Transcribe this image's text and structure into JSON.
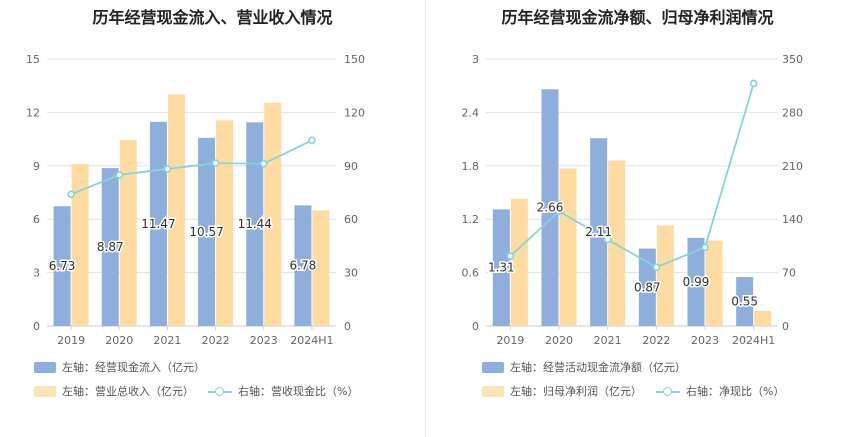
{
  "chart_data": [
    {
      "type": "bar",
      "title": "历年经营现金流入、营业收入情况",
      "categories": [
        "2019",
        "2020",
        "2021",
        "2022",
        "2023",
        "2024H1"
      ],
      "left_axis": {
        "ylim": [
          0,
          15
        ],
        "ticks": [
          "0",
          "3",
          "6",
          "9",
          "12",
          "15"
        ]
      },
      "right_axis": {
        "ylim": [
          0,
          150
        ],
        "ticks": [
          "0",
          "30",
          "60",
          "90",
          "120",
          "150"
        ]
      },
      "series": [
        {
          "name": "左轴：经营现金流入（亿元）",
          "axis": "left",
          "kind": "bar",
          "color": "#8eaedc",
          "values": [
            6.73,
            8.87,
            11.47,
            10.57,
            11.44,
            6.78
          ],
          "labels": [
            "6.73",
            "8.87",
            "11.47",
            "10.57",
            "11.44",
            "6.78"
          ]
        },
        {
          "name": "左轴：营业总收入（亿元）",
          "axis": "left",
          "kind": "bar",
          "color": "#fedba0",
          "values": [
            9.1,
            10.45,
            13.0,
            11.55,
            12.55,
            6.5
          ]
        },
        {
          "name": "右轴：营收现金比（%）",
          "axis": "right",
          "kind": "line",
          "color": "#85d4dd",
          "values": [
            73.96,
            84.88,
            88.23,
            91.52,
            91.16,
            104.31
          ]
        }
      ]
    },
    {
      "type": "bar",
      "title": "历年经营现金流净额、归母净利润情况",
      "categories": [
        "2019",
        "2020",
        "2021",
        "2022",
        "2023",
        "2024H1"
      ],
      "left_axis": {
        "ylim": [
          0,
          3
        ],
        "ticks": [
          "0",
          "0.6",
          "1.2",
          "1.8",
          "2.4",
          "3"
        ]
      },
      "right_axis": {
        "ylim": [
          0,
          350
        ],
        "ticks": [
          "0",
          "70",
          "140",
          "210",
          "280",
          "350"
        ]
      },
      "series": [
        {
          "name": "左轴：经营活动现金流净额（亿元）",
          "axis": "left",
          "kind": "bar",
          "color": "#8eaedc",
          "values": [
            1.31,
            2.66,
            2.11,
            0.87,
            0.99,
            0.55
          ],
          "labels": [
            "1.31",
            "2.66",
            "2.11",
            "0.87",
            "0.99",
            "0.55"
          ]
        },
        {
          "name": "左轴：归母净利润（亿元）",
          "axis": "left",
          "kind": "bar",
          "color": "#fedba0",
          "values": [
            1.43,
            1.77,
            1.86,
            1.13,
            0.96,
            0.17
          ]
        },
        {
          "name": "右轴：净现比（%）",
          "axis": "right",
          "kind": "line",
          "color": "#85d4dd",
          "values": [
            91.6,
            150.3,
            113.4,
            77.0,
            103.1,
            318.0
          ]
        }
      ]
    }
  ]
}
